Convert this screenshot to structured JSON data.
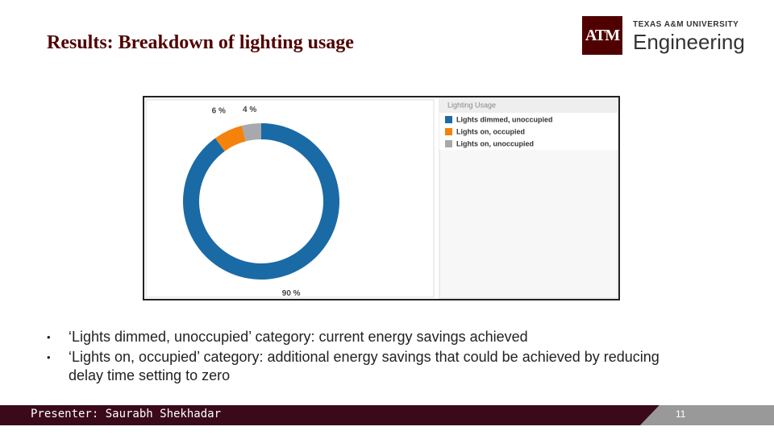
{
  "header": {
    "title": "Results: Breakdown of lighting usage",
    "logo": "ATM",
    "university": "TEXAS A&M UNIVERSITY",
    "college": "Engineering"
  },
  "chart_data": {
    "type": "donut",
    "legend_title": "Lighting Usage",
    "categories": [
      "Lights dimmed, unoccupied",
      "Lights on, occupied",
      "Lights on, unoccupied"
    ],
    "values": [
      90,
      6,
      4
    ],
    "value_labels": [
      "90 %",
      "6 %",
      "4 %"
    ],
    "colors": [
      "#1a6aa6",
      "#f5820d",
      "#a7a9ac"
    ],
    "legend": "right"
  },
  "bullets": [
    "‘Lights dimmed, unoccupied’ category: current energy savings achieved",
    "‘Lights on, occupied’ category: additional energy savings that could be achieved by reducing delay time setting to zero"
  ],
  "footer": {
    "presenter": "Presenter: Saurabh Shekhadar",
    "page": "11"
  }
}
